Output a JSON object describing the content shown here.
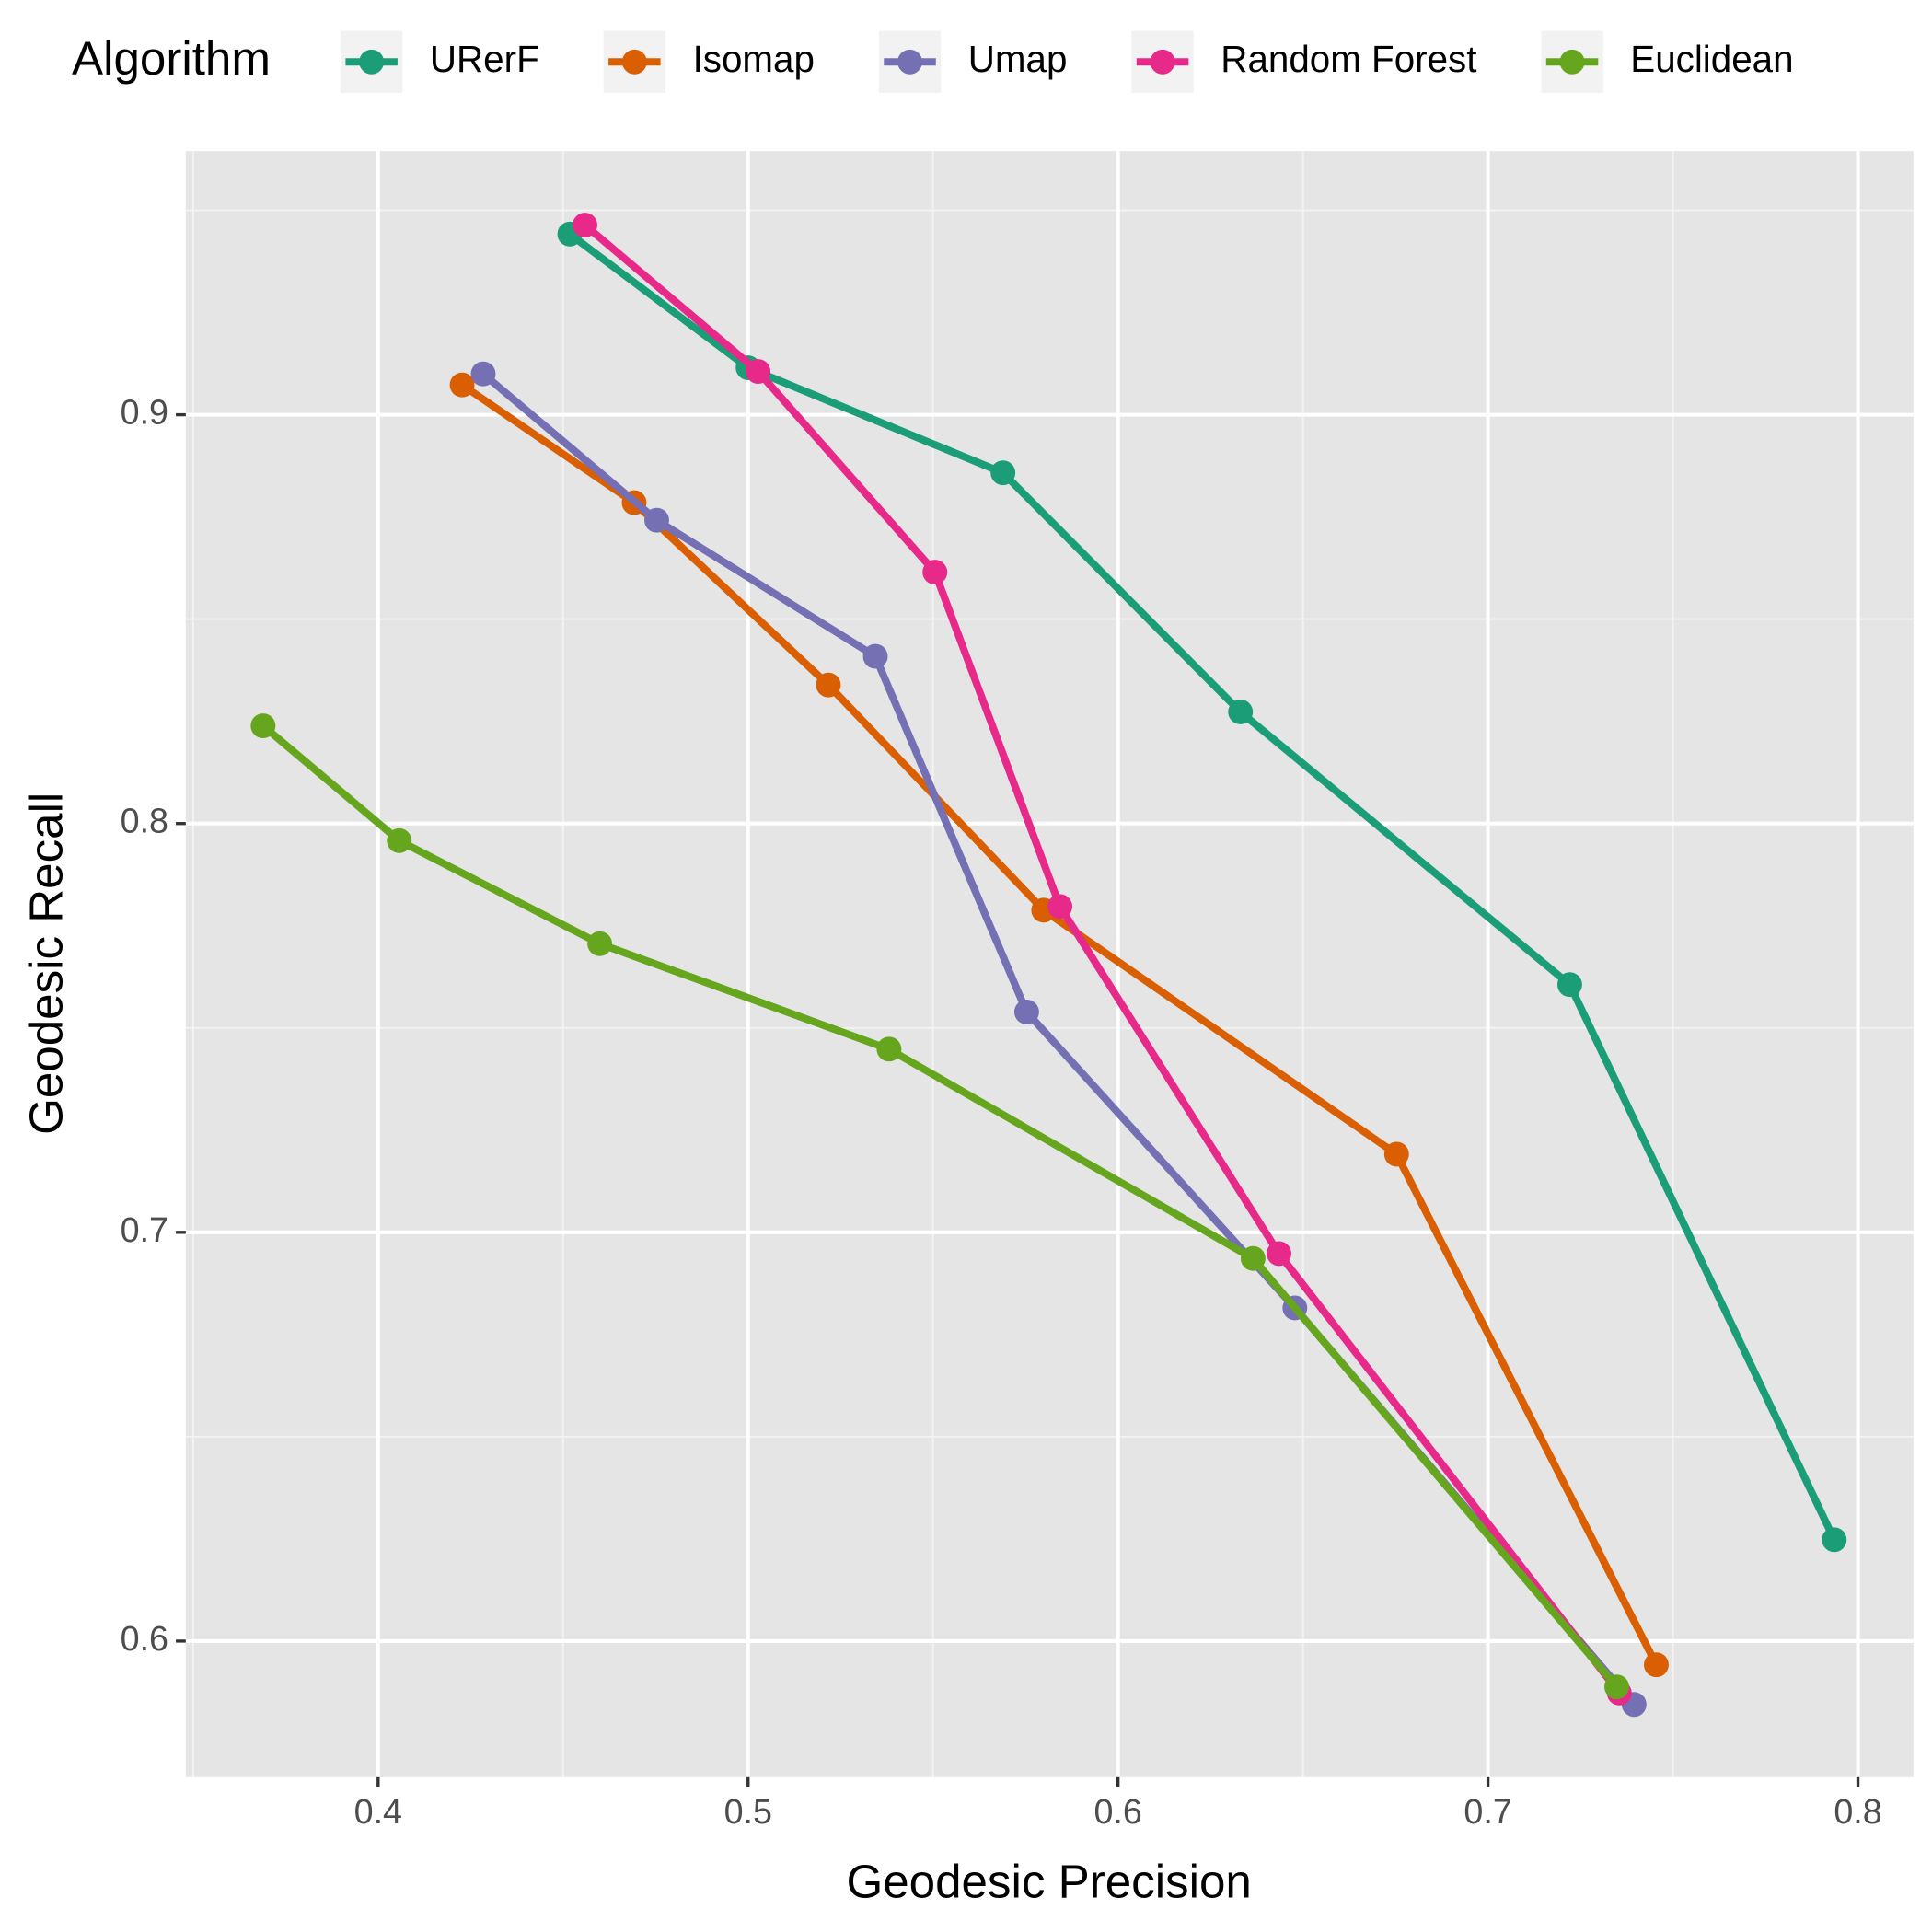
{
  "chart_data": {
    "type": "line",
    "x_label": "Geodesic Precision",
    "y_label": "Geodesic Recall",
    "legend_title": "Algorithm",
    "legend_position": "top",
    "grid": true,
    "xlim": [
      0.348,
      0.815
    ],
    "ylim": [
      0.5667,
      0.9645
    ],
    "xticks": [
      {
        "value": 0.4,
        "label": "0.4"
      },
      {
        "value": 0.5,
        "label": "0.5"
      },
      {
        "value": 0.6,
        "label": "0.6"
      },
      {
        "value": 0.7,
        "label": "0.7"
      },
      {
        "value": 0.8,
        "label": "0.8"
      }
    ],
    "yticks": [
      {
        "value": 0.6,
        "label": "0.6"
      },
      {
        "value": 0.7,
        "label": "0.7"
      },
      {
        "value": 0.8,
        "label": "0.8"
      },
      {
        "value": 0.9,
        "label": "0.9"
      }
    ],
    "series": [
      {
        "name": "URerF",
        "color": "#1b9e77",
        "x": [
          0.4518,
          0.5,
          0.5689,
          0.6331,
          0.7221,
          0.7936
        ],
        "values": [
          0.9442,
          0.9115,
          0.8858,
          0.8273,
          0.7606,
          0.6248
        ]
      },
      {
        "name": "Isomap",
        "color": "#d95f02",
        "x": [
          0.4227,
          0.4692,
          0.5217,
          0.5799,
          0.6753,
          0.7455
        ],
        "values": [
          0.9073,
          0.8785,
          0.8339,
          0.7788,
          0.7191,
          0.5942
        ]
      },
      {
        "name": "Umap",
        "color": "#7570b3",
        "x": [
          0.4284,
          0.4753,
          0.5344,
          0.5753,
          0.6478,
          0.7395
        ],
        "values": [
          0.91,
          0.8742,
          0.8409,
          0.7539,
          0.6815,
          0.5845
        ]
      },
      {
        "name": "Random Forest",
        "color": "#e7298a",
        "x": [
          0.4559,
          0.5027,
          0.5505,
          0.5843,
          0.6435,
          0.7355
        ],
        "values": [
          0.9464,
          0.9106,
          0.8615,
          0.7797,
          0.6948,
          0.5873
        ]
      },
      {
        "name": "Euclidean",
        "color": "#66a61e",
        "x": [
          0.3689,
          0.4057,
          0.4599,
          0.5381,
          0.6365,
          0.7348
        ],
        "values": [
          0.8239,
          0.7958,
          0.7706,
          0.7448,
          0.6936,
          0.5888
        ]
      }
    ]
  }
}
